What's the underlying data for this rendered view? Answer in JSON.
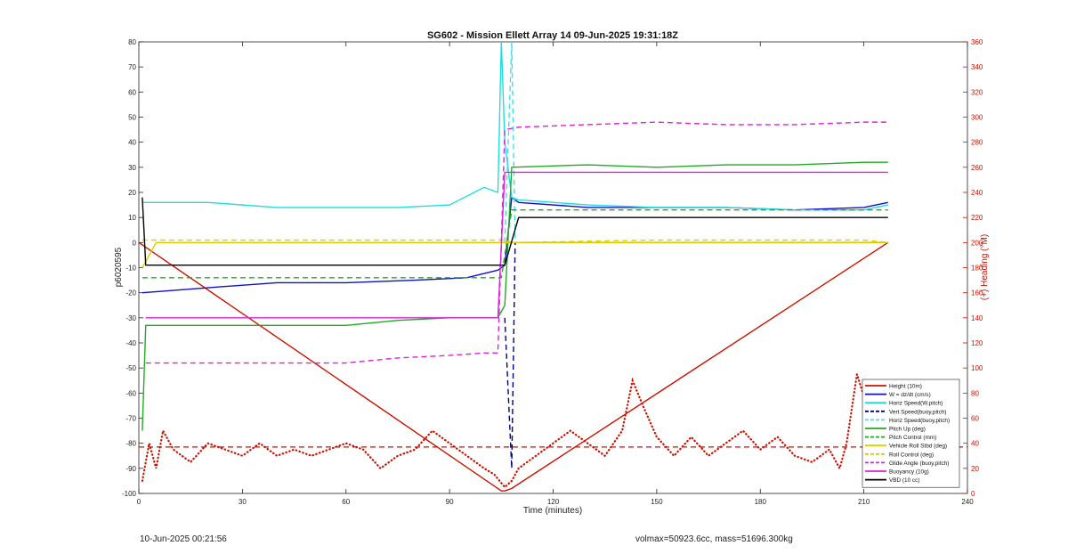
{
  "chart_data": {
    "type": "line",
    "title": "SG602 - Mission Ellett Array 14 09-Jun-2025 19:31:18Z",
    "xlabel": "Time (minutes)",
    "ylabel_left": "p6020595",
    "ylabel_right": "(+) Heading (°M)",
    "xlim": [
      0,
      240
    ],
    "ylim_left": [
      -100,
      80
    ],
    "ylim_right": [
      0,
      360
    ],
    "x_ticks": [
      "0",
      "30",
      "60",
      "90",
      "120",
      "150",
      "180",
      "210",
      "240"
    ],
    "y_ticks_left": [
      "-100",
      "-90",
      "-80",
      "-70",
      "-60",
      "-50",
      "-40",
      "-30",
      "-20",
      "-10",
      "0",
      "10",
      "20",
      "30",
      "40",
      "50",
      "60",
      "70",
      "80"
    ],
    "y_ticks_right": [
      "0",
      "20",
      "40",
      "60",
      "80",
      "100",
      "120",
      "140",
      "160",
      "180",
      "200",
      "220",
      "240",
      "260",
      "280",
      "300",
      "320",
      "340",
      "360"
    ],
    "legend_position": "bottom-right",
    "grid": false,
    "series": [
      {
        "name": "Height (10m)",
        "color": "#cc1100",
        "style": "solid",
        "x": [
          0,
          105,
          106,
          108,
          217
        ],
        "y": [
          0,
          -99,
          -99,
          -98,
          0
        ]
      },
      {
        "name": "W = dz/dt (cm/s)",
        "color": "#1010c8",
        "style": "solid",
        "x": [
          1,
          20,
          40,
          60,
          80,
          95,
          104,
          106,
          108,
          110,
          130,
          150,
          170,
          190,
          210,
          217
        ],
        "y": [
          -20,
          -18,
          -16,
          -16,
          -15,
          -14,
          -11,
          -9,
          18,
          16,
          14,
          14,
          14,
          13,
          14,
          16
        ]
      },
      {
        "name": "Horiz Speed(W,pitch)",
        "color": "#22dddd",
        "style": "solid",
        "x": [
          1,
          20,
          40,
          60,
          75,
          90,
          100,
          104,
          105,
          106,
          108,
          110,
          130,
          150,
          170,
          190,
          210,
          217
        ],
        "y": [
          16,
          16,
          14,
          14,
          14,
          15,
          22,
          20,
          80,
          40,
          18,
          17,
          15,
          14,
          14,
          13,
          13,
          15
        ]
      },
      {
        "name": "Vert Speed(buoy,pitch)",
        "color": "#000088",
        "style": "dashed",
        "x": [
          106,
          108,
          109,
          150,
          217
        ],
        "y": [
          -30,
          -90,
          0,
          0,
          0
        ]
      },
      {
        "name": "Horiz Speed(buoy,pitch)",
        "color": "#44ddee",
        "style": "dashed",
        "x": [
          106,
          108,
          109,
          150,
          217
        ],
        "y": [
          0,
          80,
          0,
          0,
          0
        ]
      },
      {
        "name": "Pitch Up (deg)",
        "color": "#22aa22",
        "style": "solid",
        "x": [
          1,
          2,
          20,
          40,
          60,
          75,
          90,
          104,
          106,
          108,
          130,
          150,
          170,
          190,
          210,
          217
        ],
        "y": [
          -75,
          -33,
          -33,
          -33,
          -33,
          -31,
          -30,
          -30,
          -25,
          30,
          31,
          30,
          31,
          31,
          32,
          32
        ]
      },
      {
        "name": "Pitch Control (mm)",
        "color": "#22aa22",
        "style": "dashed",
        "x": [
          1,
          20,
          60,
          100,
          105,
          108,
          130,
          150,
          180,
          210,
          217
        ],
        "y": [
          -14,
          -14,
          -14,
          -14,
          -14,
          13,
          13,
          13,
          13,
          13,
          13
        ]
      },
      {
        "name": "Vehicle Roll Stbd (deg)",
        "color": "#ddcc00",
        "style": "solid",
        "x": [
          1,
          5,
          20,
          40,
          60,
          80,
          100,
          106,
          108,
          130,
          150,
          180,
          210,
          217
        ],
        "y": [
          -10,
          0,
          0,
          0,
          0,
          0,
          0,
          0,
          0,
          0,
          0,
          0,
          0,
          0
        ]
      },
      {
        "name": "Roll Control (deg)",
        "color": "#ddcc00",
        "style": "dashed",
        "x": [
          1,
          20,
          60,
          100,
          106,
          108,
          150,
          210,
          217
        ],
        "y": [
          1,
          1,
          1,
          1,
          1,
          0,
          1,
          1,
          0
        ]
      },
      {
        "name": "Glide Angle (buoy,pitch)",
        "color": "#dd22dd",
        "style": "dashed",
        "x": [
          2,
          20,
          40,
          60,
          75,
          90,
          100,
          104,
          106,
          110,
          130,
          150,
          170,
          190,
          210,
          217
        ],
        "y": [
          -48,
          -48,
          -48,
          -48,
          -46,
          -45,
          -44,
          -44,
          45,
          46,
          47,
          48,
          47,
          47,
          48,
          48
        ]
      },
      {
        "name": "Buoyancy (10g)",
        "color": "#dd22dd",
        "style": "solid",
        "x": [
          2,
          20,
          60,
          75,
          90,
          104,
          106,
          110,
          217
        ],
        "y": [
          -30,
          -30,
          -30,
          -30,
          -30,
          -30,
          28,
          28,
          28
        ]
      },
      {
        "name": "VBD (10 cc)",
        "color": "#000000",
        "style": "solid",
        "x": [
          1,
          2,
          20,
          60,
          105,
          106,
          110,
          150,
          217
        ],
        "y": [
          18,
          -9,
          -9,
          -9,
          -9,
          -9,
          10,
          10,
          10
        ]
      }
    ],
    "heading_series": {
      "name": "Heading",
      "axis": "right",
      "color": "#cc1100",
      "style": "dotted",
      "x": [
        1,
        3,
        5,
        7,
        10,
        15,
        20,
        25,
        30,
        35,
        40,
        45,
        50,
        55,
        60,
        65,
        70,
        75,
        80,
        85,
        90,
        95,
        100,
        103,
        106,
        108,
        110,
        115,
        120,
        125,
        130,
        135,
        140,
        143,
        146,
        150,
        155,
        160,
        165,
        170,
        175,
        180,
        185,
        190,
        195,
        200,
        203,
        205,
        208,
        212,
        215,
        217
      ],
      "y": [
        10,
        40,
        20,
        50,
        35,
        25,
        40,
        35,
        30,
        40,
        30,
        35,
        30,
        35,
        40,
        35,
        20,
        30,
        35,
        50,
        40,
        30,
        20,
        15,
        5,
        10,
        20,
        30,
        40,
        50,
        40,
        30,
        50,
        90,
        70,
        45,
        30,
        45,
        30,
        40,
        50,
        35,
        45,
        30,
        25,
        35,
        20,
        40,
        95,
        60,
        30,
        25
      ]
    },
    "heading_reference_line": {
      "name": "",
      "axis": "right",
      "style": "dashed",
      "color": "#cc1100",
      "y": 37
    }
  },
  "footer": {
    "left": "10-Jun-2025 00:21:56",
    "right": "volmax=50923.6cc, mass=51696.300kg"
  }
}
